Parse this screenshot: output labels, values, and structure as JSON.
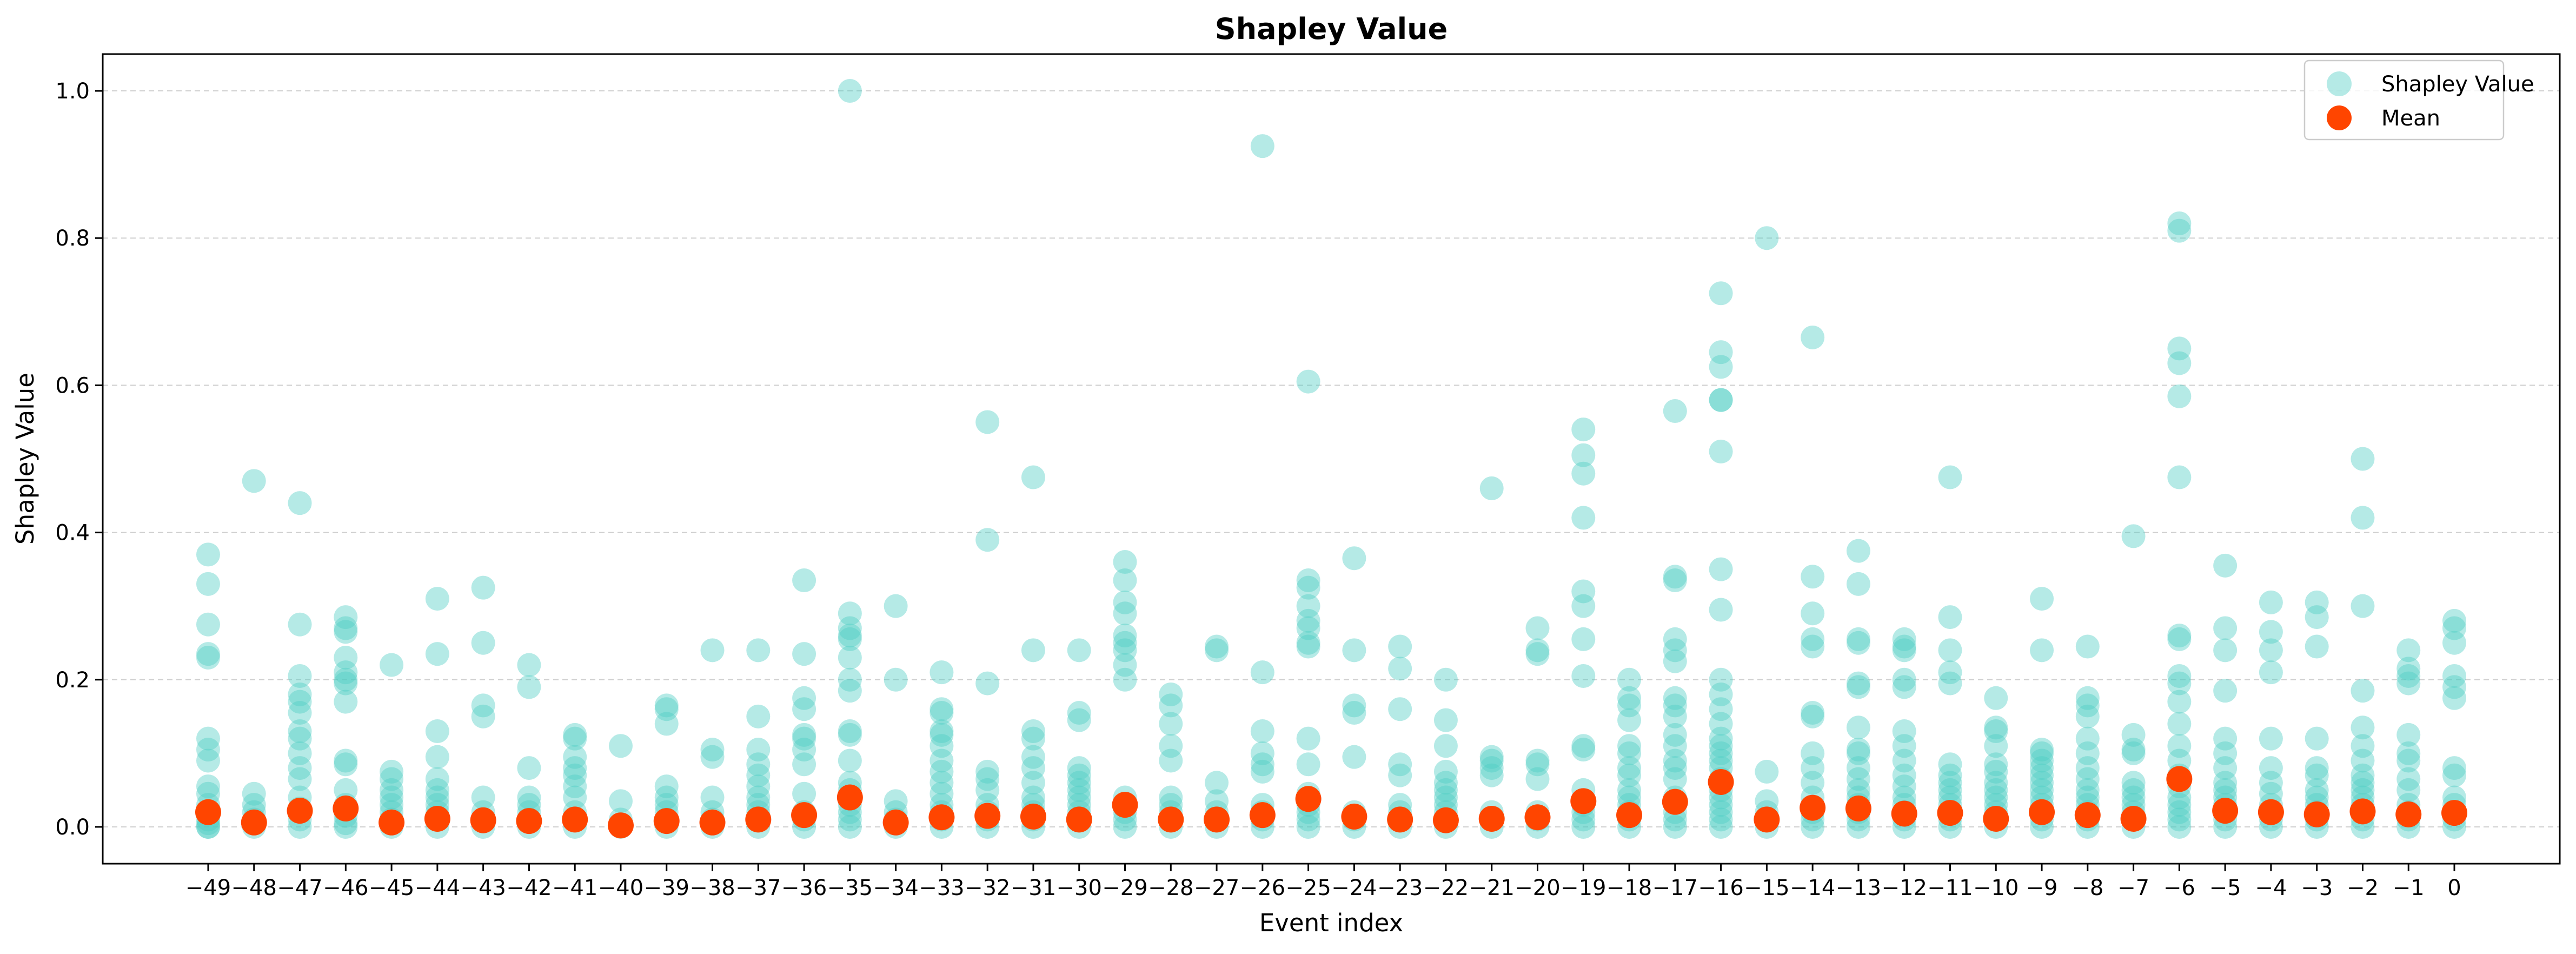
{
  "chart_data": {
    "type": "scatter",
    "title": "Shapley Value",
    "xlabel": "Event index",
    "ylabel": "Shapley Value",
    "xlim": [
      -51.3,
      2.3
    ],
    "ylim": [
      -0.05,
      1.05
    ],
    "grid": "horizontal dashed",
    "legend_position": "top-right",
    "colors": {
      "shapley": "#4ecdc4",
      "mean": "#ff4500"
    },
    "x_ticks": [
      "−49",
      "−48",
      "−47",
      "−46",
      "−45",
      "−44",
      "−43",
      "−42",
      "−41",
      "−40",
      "−39",
      "−38",
      "−37",
      "−36",
      "−35",
      "−34",
      "−33",
      "−32",
      "−31",
      "−30",
      "−29",
      "−28",
      "−27",
      "−26",
      "−25",
      "−24",
      "−23",
      "−22",
      "−21",
      "−20",
      "−19",
      "−18",
      "−17",
      "−16",
      "−15",
      "−14",
      "−13",
      "−12",
      "−11",
      "−10",
      "−9",
      "−8",
      "−7",
      "−6",
      "−5",
      "−4",
      "−3",
      "−2",
      "−1",
      "0"
    ],
    "y_ticks": [
      "0.0",
      "0.2",
      "0.4",
      "0.6",
      "0.8",
      "1.0"
    ],
    "y_tick_values": [
      0,
      0.2,
      0.4,
      0.6,
      0.8,
      1.0
    ],
    "series": [
      {
        "name": "Shapley Value",
        "points": [
          [
            -49,
            [
              0.37,
              0.33,
              0.275,
              0.235,
              0.23,
              0.12,
              0.105,
              0.09,
              0.055,
              0.045,
              0.03,
              0.02,
              0.01,
              0.005,
              0,
              0
            ]
          ],
          [
            -48,
            [
              0.47,
              0.045,
              0.03,
              0.02,
              0.01,
              0.005,
              0
            ]
          ],
          [
            -47,
            [
              0.44,
              0.275,
              0.205,
              0.18,
              0.17,
              0.155,
              0.13,
              0.12,
              0.1,
              0.08,
              0.065,
              0.04,
              0.025,
              0.01,
              0
            ]
          ],
          [
            -46,
            [
              0.285,
              0.27,
              0.265,
              0.23,
              0.21,
              0.2,
              0.195,
              0.17,
              0.09,
              0.085,
              0.05,
              0.03,
              0.015,
              0.005,
              0
            ]
          ],
          [
            -45,
            [
              0.22,
              0.075,
              0.065,
              0.05,
              0.04,
              0.03,
              0.02,
              0.01,
              0
            ]
          ],
          [
            -44,
            [
              0.31,
              0.235,
              0.13,
              0.095,
              0.065,
              0.05,
              0.04,
              0.03,
              0.02,
              0.01,
              0
            ]
          ],
          [
            -43,
            [
              0.325,
              0.25,
              0.165,
              0.15,
              0.04,
              0.02,
              0.01,
              0
            ]
          ],
          [
            -42,
            [
              0.22,
              0.19,
              0.08,
              0.04,
              0.03,
              0.02,
              0.01,
              0
            ]
          ],
          [
            -41,
            [
              0.125,
              0.12,
              0.095,
              0.08,
              0.07,
              0.055,
              0.04,
              0.02,
              0.01,
              0
            ]
          ],
          [
            -40,
            [
              0.11,
              0.035,
              0.01,
              0
            ]
          ],
          [
            -39,
            [
              0.165,
              0.16,
              0.14,
              0.055,
              0.04,
              0.03,
              0.02,
              0.01,
              0
            ]
          ],
          [
            -38,
            [
              0.24,
              0.105,
              0.095,
              0.04,
              0.02,
              0.01,
              0
            ]
          ],
          [
            -37,
            [
              0.24,
              0.15,
              0.105,
              0.085,
              0.07,
              0.055,
              0.04,
              0.03,
              0.02,
              0.01,
              0
            ]
          ],
          [
            -36,
            [
              0.335,
              0.235,
              0.175,
              0.16,
              0.125,
              0.12,
              0.105,
              0.085,
              0.045,
              0.02,
              0.01,
              0
            ]
          ],
          [
            -35,
            [
              1.0,
              0.29,
              0.27,
              0.26,
              0.255,
              0.23,
              0.2,
              0.185,
              0.13,
              0.125,
              0.09,
              0.06,
              0.05,
              0.03,
              0.02,
              0.01,
              0
            ]
          ],
          [
            -34,
            [
              0.3,
              0.2,
              0.035,
              0.02,
              0.01,
              0
            ]
          ],
          [
            -33,
            [
              0.21,
              0.16,
              0.155,
              0.13,
              0.125,
              0.11,
              0.09,
              0.075,
              0.06,
              0.045,
              0.03,
              0.02,
              0.01,
              0
            ]
          ],
          [
            -32,
            [
              0.55,
              0.39,
              0.195,
              0.075,
              0.065,
              0.05,
              0.03,
              0.02,
              0.01,
              0
            ]
          ],
          [
            -31,
            [
              0.475,
              0.24,
              0.13,
              0.12,
              0.095,
              0.08,
              0.06,
              0.04,
              0.03,
              0.02,
              0.01,
              0
            ]
          ],
          [
            -30,
            [
              0.24,
              0.155,
              0.145,
              0.08,
              0.07,
              0.06,
              0.05,
              0.04,
              0.03,
              0.02,
              0.01,
              0
            ]
          ],
          [
            -29,
            [
              0.36,
              0.335,
              0.305,
              0.29,
              0.26,
              0.25,
              0.24,
              0.22,
              0.2,
              0.04,
              0.02,
              0.01,
              0
            ]
          ],
          [
            -28,
            [
              0.18,
              0.165,
              0.14,
              0.11,
              0.09,
              0.04,
              0.03,
              0.02,
              0.01,
              0
            ]
          ],
          [
            -27,
            [
              0.245,
              0.24,
              0.06,
              0.035,
              0.02,
              0.01,
              0
            ]
          ],
          [
            -26,
            [
              0.925,
              0.21,
              0.13,
              0.1,
              0.085,
              0.075,
              0.03,
              0.02,
              0.01,
              0
            ]
          ],
          [
            -25,
            [
              0.605,
              0.335,
              0.325,
              0.3,
              0.28,
              0.27,
              0.25,
              0.245,
              0.12,
              0.085,
              0.045,
              0.03,
              0.02,
              0.01,
              0
            ]
          ],
          [
            -24,
            [
              0.365,
              0.24,
              0.165,
              0.155,
              0.095,
              0.02,
              0.01,
              0
            ]
          ],
          [
            -23,
            [
              0.245,
              0.215,
              0.16,
              0.085,
              0.07,
              0.03,
              0.02,
              0.01,
              0
            ]
          ],
          [
            -22,
            [
              0.2,
              0.145,
              0.11,
              0.075,
              0.06,
              0.05,
              0.04,
              0.03,
              0.02,
              0.01,
              0
            ]
          ],
          [
            -21,
            [
              0.46,
              0.095,
              0.09,
              0.08,
              0.07,
              0.02,
              0.01,
              0
            ]
          ],
          [
            -20,
            [
              0.27,
              0.24,
              0.235,
              0.09,
              0.085,
              0.065,
              0.02,
              0.01,
              0
            ]
          ],
          [
            -19,
            [
              0.54,
              0.505,
              0.48,
              0.42,
              0.32,
              0.3,
              0.255,
              0.205,
              0.11,
              0.105,
              0.05,
              0.03,
              0.02,
              0.01,
              0
            ]
          ],
          [
            -18,
            [
              0.2,
              0.175,
              0.165,
              0.145,
              0.11,
              0.1,
              0.08,
              0.07,
              0.05,
              0.04,
              0.03,
              0.02,
              0.01,
              0
            ]
          ],
          [
            -17,
            [
              0.565,
              0.34,
              0.335,
              0.255,
              0.24,
              0.225,
              0.175,
              0.165,
              0.15,
              0.125,
              0.11,
              0.09,
              0.08,
              0.065,
              0.04,
              0.02,
              0.01,
              0
            ]
          ],
          [
            -16,
            [
              0.725,
              0.645,
              0.625,
              0.58,
              0.58,
              0.51,
              0.35,
              0.295,
              0.2,
              0.18,
              0.16,
              0.14,
              0.12,
              0.11,
              0.1,
              0.09,
              0.08,
              0.065,
              0.05,
              0.04,
              0.03,
              0.02,
              0.01,
              0
            ]
          ],
          [
            -15,
            [
              0.8,
              0.075,
              0.035,
              0.02,
              0.01,
              0
            ]
          ],
          [
            -14,
            [
              0.665,
              0.34,
              0.29,
              0.255,
              0.245,
              0.155,
              0.15,
              0.1,
              0.08,
              0.06,
              0.04,
              0.02,
              0.01,
              0
            ]
          ],
          [
            -13,
            [
              0.375,
              0.33,
              0.255,
              0.25,
              0.195,
              0.19,
              0.135,
              0.105,
              0.1,
              0.08,
              0.065,
              0.05,
              0.04,
              0.03,
              0.02,
              0.01,
              0
            ]
          ],
          [
            -12,
            [
              0.255,
              0.245,
              0.24,
              0.2,
              0.19,
              0.13,
              0.11,
              0.09,
              0.07,
              0.055,
              0.04,
              0.03,
              0.02,
              0.01,
              0
            ]
          ],
          [
            -11,
            [
              0.475,
              0.285,
              0.24,
              0.21,
              0.195,
              0.085,
              0.07,
              0.06,
              0.05,
              0.04,
              0.03,
              0.02,
              0.01,
              0
            ]
          ],
          [
            -10,
            [
              0.175,
              0.135,
              0.13,
              0.11,
              0.085,
              0.075,
              0.06,
              0.05,
              0.04,
              0.03,
              0.02,
              0.01,
              0
            ]
          ],
          [
            -9,
            [
              0.31,
              0.24,
              0.105,
              0.1,
              0.09,
              0.08,
              0.07,
              0.06,
              0.05,
              0.04,
              0.03,
              0.02,
              0.01,
              0
            ]
          ],
          [
            -8,
            [
              0.245,
              0.175,
              0.165,
              0.15,
              0.12,
              0.1,
              0.08,
              0.065,
              0.05,
              0.04,
              0.03,
              0.02,
              0.01,
              0
            ]
          ],
          [
            -7,
            [
              0.395,
              0.125,
              0.105,
              0.1,
              0.06,
              0.05,
              0.04,
              0.03,
              0.02,
              0.01,
              0
            ]
          ],
          [
            -6,
            [
              0.82,
              0.81,
              0.65,
              0.63,
              0.585,
              0.475,
              0.26,
              0.255,
              0.205,
              0.195,
              0.17,
              0.14,
              0.11,
              0.09,
              0.07,
              0.055,
              0.04,
              0.03,
              0.02,
              0.01,
              0
            ]
          ],
          [
            -5,
            [
              0.355,
              0.27,
              0.24,
              0.185,
              0.12,
              0.1,
              0.08,
              0.06,
              0.05,
              0.04,
              0.03,
              0.02,
              0.01,
              0
            ]
          ],
          [
            -4,
            [
              0.305,
              0.265,
              0.24,
              0.21,
              0.12,
              0.08,
              0.06,
              0.045,
              0.03,
              0.02,
              0.01,
              0
            ]
          ],
          [
            -3,
            [
              0.305,
              0.285,
              0.245,
              0.12,
              0.08,
              0.07,
              0.05,
              0.04,
              0.03,
              0.02,
              0.01,
              0
            ]
          ],
          [
            -2,
            [
              0.5,
              0.42,
              0.3,
              0.185,
              0.135,
              0.11,
              0.09,
              0.07,
              0.06,
              0.05,
              0.04,
              0.03,
              0.02,
              0.01,
              0
            ]
          ],
          [
            -1,
            [
              0.24,
              0.215,
              0.205,
              0.195,
              0.125,
              0.1,
              0.09,
              0.065,
              0.05,
              0.03,
              0.02,
              0.01,
              0
            ]
          ],
          [
            0,
            [
              0.28,
              0.27,
              0.25,
              0.205,
              0.19,
              0.175,
              0.08,
              0.07,
              0.04,
              0.03,
              0.02,
              0.01,
              0
            ]
          ]
        ]
      },
      {
        "name": "Mean",
        "x": [
          -49,
          -48,
          -47,
          -46,
          -45,
          -44,
          -43,
          -42,
          -41,
          -40,
          -39,
          -38,
          -37,
          -36,
          -35,
          -34,
          -33,
          -32,
          -31,
          -30,
          -29,
          -28,
          -27,
          -26,
          -25,
          -24,
          -23,
          -22,
          -21,
          -20,
          -19,
          -18,
          -17,
          -16,
          -15,
          -14,
          -13,
          -12,
          -11,
          -10,
          -9,
          -8,
          -7,
          -6,
          -5,
          -4,
          -3,
          -2,
          -1,
          0
        ],
        "y": [
          0.02,
          0.006,
          0.022,
          0.025,
          0.006,
          0.011,
          0.009,
          0.008,
          0.01,
          0.002,
          0.008,
          0.006,
          0.01,
          0.016,
          0.04,
          0.006,
          0.013,
          0.015,
          0.014,
          0.01,
          0.03,
          0.01,
          0.01,
          0.016,
          0.038,
          0.014,
          0.01,
          0.009,
          0.011,
          0.013,
          0.035,
          0.016,
          0.034,
          0.061,
          0.01,
          0.026,
          0.025,
          0.018,
          0.019,
          0.011,
          0.02,
          0.016,
          0.011,
          0.065,
          0.022,
          0.02,
          0.017,
          0.021,
          0.017,
          0.019
        ]
      }
    ]
  }
}
